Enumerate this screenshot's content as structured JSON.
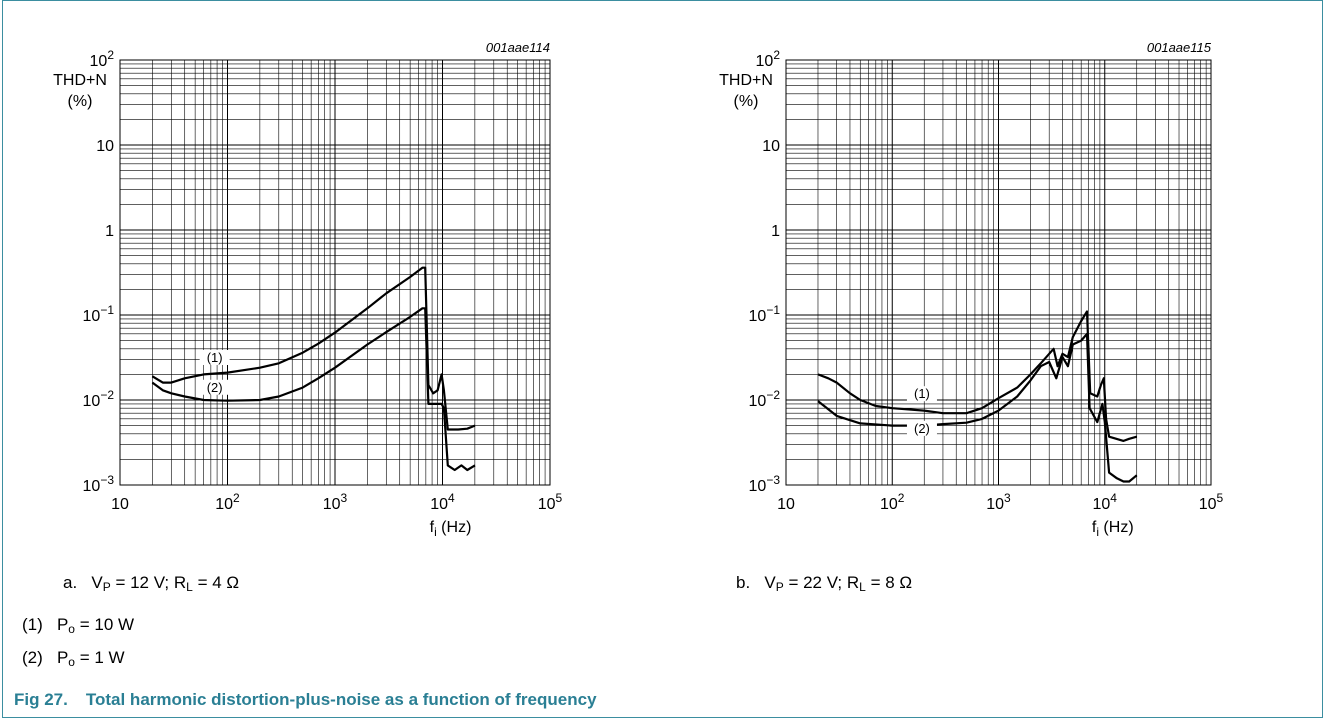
{
  "figure": {
    "number": "Fig 27.",
    "title": "Total harmonic distortion-plus-noise as a function of frequency",
    "legend": [
      {
        "marker": "(1)",
        "text": "P",
        "sub": "o",
        "rest": " = 10 W"
      },
      {
        "marker": "(2)",
        "text": "P",
        "sub": "o",
        "rest": " = 1 W"
      }
    ],
    "colors": {
      "frame": "#3b8ea0",
      "title": "#2a7f94",
      "curve": "#000000",
      "grid": "#000000"
    }
  },
  "chart_data": [
    {
      "type": "line",
      "ref": "001aae114",
      "caption": {
        "letter": "a.",
        "parts": [
          "V",
          "P",
          " = 12 V; R",
          "L",
          " = 4 Ω"
        ]
      },
      "ylabel_lines": [
        "THD+N",
        "(%)"
      ],
      "xlabel": {
        "main": "f",
        "sub": "i",
        "unit": " (Hz)"
      },
      "x_scale": "log",
      "y_scale": "log",
      "xlim": [
        10,
        100000
      ],
      "ylim": [
        0.001,
        100
      ],
      "x_ticks": [
        {
          "b": "10",
          "e": ""
        },
        {
          "b": "10",
          "e": "2"
        },
        {
          "b": "10",
          "e": "3"
        },
        {
          "b": "10",
          "e": "4"
        },
        {
          "b": "10",
          "e": "5"
        }
      ],
      "y_ticks": [
        {
          "b": "10",
          "e": "−3"
        },
        {
          "b": "10",
          "e": "−2"
        },
        {
          "b": "10",
          "e": "−1"
        },
        {
          "b": "1",
          "e": ""
        },
        {
          "b": "10",
          "e": ""
        },
        {
          "b": "10",
          "e": "2"
        }
      ],
      "grid": true,
      "series": [
        {
          "label": "(1)",
          "label_at": [
            60,
            0.028
          ],
          "points": [
            [
              20,
              0.019
            ],
            [
              25,
              0.016
            ],
            [
              30,
              0.016
            ],
            [
              40,
              0.018
            ],
            [
              60,
              0.02
            ],
            [
              100,
              0.021
            ],
            [
              200,
              0.024
            ],
            [
              300,
              0.027
            ],
            [
              500,
              0.036
            ],
            [
              700,
              0.046
            ],
            [
              1000,
              0.062
            ],
            [
              2000,
              0.12
            ],
            [
              3000,
              0.18
            ],
            [
              5000,
              0.28
            ],
            [
              6500,
              0.36
            ],
            [
              6900,
              0.36
            ],
            [
              7400,
              0.015
            ],
            [
              8200,
              0.012
            ],
            [
              9000,
              0.013
            ],
            [
              9800,
              0.02
            ],
            [
              10300,
              0.013
            ],
            [
              11200,
              0.0045
            ],
            [
              14000,
              0.0045
            ],
            [
              17000,
              0.0046
            ],
            [
              20000,
              0.005
            ]
          ]
        },
        {
          "label": "(2)",
          "label_at": [
            60,
            0.0125
          ],
          "points": [
            [
              20,
              0.016
            ],
            [
              25,
              0.013
            ],
            [
              30,
              0.012
            ],
            [
              40,
              0.011
            ],
            [
              60,
              0.01
            ],
            [
              100,
              0.0098
            ],
            [
              200,
              0.01
            ],
            [
              300,
              0.011
            ],
            [
              500,
              0.014
            ],
            [
              700,
              0.018
            ],
            [
              1000,
              0.024
            ],
            [
              2000,
              0.045
            ],
            [
              3000,
              0.063
            ],
            [
              5000,
              0.095
            ],
            [
              6500,
              0.12
            ],
            [
              6900,
              0.12
            ],
            [
              7400,
              0.009
            ],
            [
              9000,
              0.009
            ],
            [
              9800,
              0.009
            ],
            [
              10300,
              0.008
            ],
            [
              11200,
              0.0017
            ],
            [
              13000,
              0.0015
            ],
            [
              15000,
              0.0017
            ],
            [
              17000,
              0.0015
            ],
            [
              20000,
              0.0017
            ]
          ]
        }
      ]
    },
    {
      "type": "line",
      "ref": "001aae115",
      "caption": {
        "letter": "b.",
        "parts": [
          "V",
          "P",
          " = 22 V; R",
          "L",
          " = 8 Ω"
        ]
      },
      "ylabel_lines": [
        "THD+N",
        "(%)"
      ],
      "xlabel": {
        "main": "f",
        "sub": "i",
        "unit": " (Hz)"
      },
      "x_scale": "log",
      "y_scale": "log",
      "xlim": [
        10,
        100000
      ],
      "ylim": [
        0.001,
        100
      ],
      "x_ticks": [
        {
          "b": "10",
          "e": ""
        },
        {
          "b": "10",
          "e": "2"
        },
        {
          "b": "10",
          "e": "3"
        },
        {
          "b": "10",
          "e": "4"
        },
        {
          "b": "10",
          "e": "5"
        }
      ],
      "y_ticks": [
        {
          "b": "10",
          "e": "−3"
        },
        {
          "b": "10",
          "e": "−2"
        },
        {
          "b": "10",
          "e": "−1"
        },
        {
          "b": "1",
          "e": ""
        },
        {
          "b": "10",
          "e": ""
        },
        {
          "b": "10",
          "e": "2"
        }
      ],
      "grid": true,
      "series": [
        {
          "label": "(1)",
          "label_at": [
            150,
            0.0105
          ],
          "points": [
            [
              20,
              0.02
            ],
            [
              25,
              0.018
            ],
            [
              30,
              0.016
            ],
            [
              40,
              0.012
            ],
            [
              50,
              0.01
            ],
            [
              70,
              0.0085
            ],
            [
              100,
              0.008
            ],
            [
              200,
              0.0075
            ],
            [
              300,
              0.007
            ],
            [
              500,
              0.007
            ],
            [
              700,
              0.008
            ],
            [
              1000,
              0.0105
            ],
            [
              1500,
              0.014
            ],
            [
              2000,
              0.02
            ],
            [
              2500,
              0.027
            ],
            [
              3000,
              0.035
            ],
            [
              3300,
              0.04
            ],
            [
              3600,
              0.025
            ],
            [
              4000,
              0.035
            ],
            [
              4500,
              0.032
            ],
            [
              5000,
              0.055
            ],
            [
              6000,
              0.085
            ],
            [
              6800,
              0.11
            ],
            [
              7300,
              0.012
            ],
            [
              8500,
              0.011
            ],
            [
              9200,
              0.015
            ],
            [
              9800,
              0.018
            ],
            [
              10300,
              0.006
            ],
            [
              11000,
              0.0037
            ],
            [
              15000,
              0.0033
            ],
            [
              17000,
              0.0035
            ],
            [
              20000,
              0.0037
            ]
          ]
        },
        {
          "label": "(2)",
          "label_at": [
            150,
            0.0041
          ],
          "points": [
            [
              20,
              0.0097
            ],
            [
              30,
              0.0065
            ],
            [
              50,
              0.0053
            ],
            [
              100,
              0.005
            ],
            [
              200,
              0.005
            ],
            [
              300,
              0.0052
            ],
            [
              500,
              0.0054
            ],
            [
              700,
              0.006
            ],
            [
              1000,
              0.0075
            ],
            [
              1500,
              0.011
            ],
            [
              2000,
              0.017
            ],
            [
              2500,
              0.025
            ],
            [
              3000,
              0.028
            ],
            [
              3500,
              0.018
            ],
            [
              4000,
              0.032
            ],
            [
              4500,
              0.025
            ],
            [
              5000,
              0.045
            ],
            [
              6000,
              0.05
            ],
            [
              6800,
              0.06
            ],
            [
              7200,
              0.008
            ],
            [
              8500,
              0.0055
            ],
            [
              9500,
              0.009
            ],
            [
              10000,
              0.0055
            ],
            [
              11000,
              0.0014
            ],
            [
              13000,
              0.0012
            ],
            [
              15000,
              0.0011
            ],
            [
              17000,
              0.0011
            ],
            [
              20000,
              0.0013
            ]
          ]
        }
      ]
    }
  ]
}
